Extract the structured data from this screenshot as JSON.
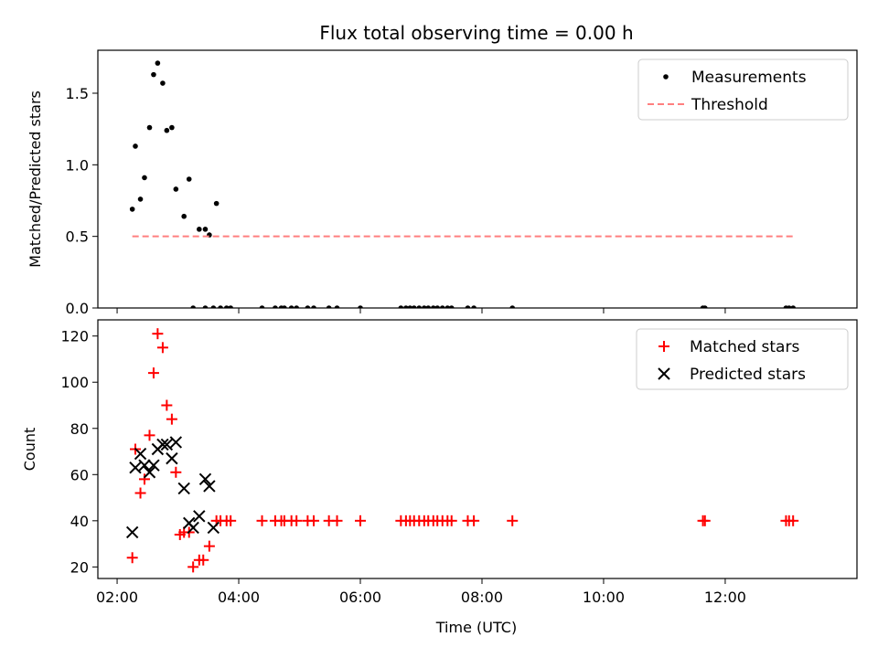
{
  "figure": {
    "title": "Flux total observing time = 0.00 h",
    "xlabel": "Time (UTC)"
  },
  "colors": {
    "measurement": "#000000",
    "threshold": "#ff7f7f",
    "matched": "#ff0000",
    "predicted": "#000000"
  },
  "chart_data": [
    {
      "type": "scatter",
      "ylabel": "Matched/Predicted stars",
      "xlim": [
        "02:00",
        "14:00"
      ],
      "ylim": [
        0,
        1.8
      ],
      "yticks": [
        0.0,
        0.5,
        1.0,
        1.5
      ],
      "ytick_labels": [
        "0.0",
        "0.5",
        "1.0",
        "1.5"
      ],
      "xticks": [
        "02:00",
        "04:00",
        "06:00",
        "08:00",
        "10:00",
        "12:00"
      ],
      "legend": {
        "position": "top-right",
        "entries": [
          "Measurements",
          "Threshold"
        ]
      },
      "series": [
        {
          "name": "Measurements",
          "marker": "dot",
          "x": [
            "02:15",
            "02:18",
            "02:23",
            "02:27",
            "02:32",
            "02:36",
            "02:40",
            "02:45",
            "02:49",
            "02:54",
            "02:58",
            "03:06",
            "03:11",
            "03:15",
            "03:21",
            "03:27",
            "03:31",
            "03:38",
            "03:42",
            "03:27",
            "03:35",
            "03:48",
            "03:52",
            "04:23",
            "04:36",
            "04:42",
            "04:45",
            "04:52",
            "04:57",
            "05:08",
            "05:14",
            "05:29",
            "05:37",
            "06:00",
            "06:40",
            "06:45",
            "06:49",
            "06:53",
            "06:58",
            "07:03",
            "07:07",
            "07:12",
            "07:16",
            "07:21",
            "07:26",
            "07:30",
            "07:46",
            "07:52",
            "08:30",
            "11:38",
            "11:40",
            "13:00",
            "13:03",
            "13:07"
          ],
          "y": [
            0.69,
            1.13,
            0.76,
            0.91,
            1.26,
            1.63,
            1.71,
            1.57,
            1.24,
            1.26,
            0.83,
            0.64,
            0.9,
            0.0,
            0.55,
            0.55,
            0.51,
            0.73,
            0.0,
            0.0,
            0.0,
            0.0,
            0.0,
            0.0,
            0.0,
            0.0,
            0.0,
            0.0,
            0.0,
            0.0,
            0.0,
            0.0,
            0.0,
            0.0,
            0.0,
            0.0,
            0.0,
            0.0,
            0.0,
            0.0,
            0.0,
            0.0,
            0.0,
            0.0,
            0.0,
            0.0,
            0.0,
            0.0,
            0.0,
            0.0,
            0.0,
            0.0,
            0.0,
            0.0
          ]
        },
        {
          "name": "Threshold",
          "style": "dashed-line",
          "x": [
            "02:15",
            "13:10"
          ],
          "y": [
            0.5,
            0.5
          ]
        }
      ]
    },
    {
      "type": "scatter",
      "ylabel": "Count",
      "xlabel": "Time (UTC)",
      "xlim": [
        "02:00",
        "14:00"
      ],
      "ylim": [
        15,
        127
      ],
      "yticks": [
        20,
        40,
        60,
        80,
        100,
        120
      ],
      "ytick_labels": [
        "20",
        "40",
        "60",
        "80",
        "100",
        "120"
      ],
      "xticks": [
        "02:00",
        "04:00",
        "06:00",
        "08:00",
        "10:00",
        "12:00"
      ],
      "xtick_labels": [
        "02:00",
        "04:00",
        "06:00",
        "08:00",
        "10:00",
        "12:00"
      ],
      "legend": {
        "position": "top-right",
        "entries": [
          "Matched stars",
          "Predicted stars"
        ]
      },
      "series": [
        {
          "name": "Matched stars",
          "marker": "plus",
          "x": [
            "02:15",
            "02:18",
            "02:23",
            "02:27",
            "02:32",
            "02:36",
            "02:40",
            "02:45",
            "02:49",
            "02:54",
            "02:58",
            "03:02",
            "03:06",
            "03:11",
            "03:15",
            "03:21",
            "03:25",
            "03:31",
            "03:38",
            "03:42",
            "03:48",
            "03:52",
            "04:23",
            "04:36",
            "04:42",
            "04:45",
            "04:52",
            "04:57",
            "05:08",
            "05:14",
            "05:29",
            "05:37",
            "06:00",
            "06:40",
            "06:45",
            "06:49",
            "06:53",
            "06:58",
            "07:03",
            "07:07",
            "07:12",
            "07:16",
            "07:21",
            "07:26",
            "07:30",
            "07:46",
            "07:52",
            "08:30",
            "11:38",
            "11:40",
            "13:00",
            "13:03",
            "13:07"
          ],
          "y": [
            24,
            71,
            52,
            58,
            77,
            104,
            121,
            115,
            90,
            84,
            61,
            34,
            35,
            35,
            20,
            23,
            23,
            29,
            40,
            40,
            40,
            40,
            40,
            40,
            40,
            40,
            40,
            40,
            40,
            40,
            40,
            40,
            40,
            40,
            40,
            40,
            40,
            40,
            40,
            40,
            40,
            40,
            40,
            40,
            40,
            40,
            40,
            40,
            40,
            40,
            40,
            40,
            40
          ]
        },
        {
          "name": "Predicted stars",
          "marker": "x",
          "x": [
            "02:15",
            "02:18",
            "02:23",
            "02:27",
            "02:32",
            "02:36",
            "02:40",
            "02:45",
            "02:49",
            "02:54",
            "02:58",
            "03:06",
            "03:11",
            "03:15",
            "03:21",
            "03:27",
            "03:31",
            "03:35"
          ],
          "y": [
            35,
            63,
            69,
            64,
            61,
            64,
            71,
            73,
            73,
            67,
            74,
            54,
            39,
            37,
            42,
            58,
            55,
            37
          ]
        }
      ]
    }
  ]
}
